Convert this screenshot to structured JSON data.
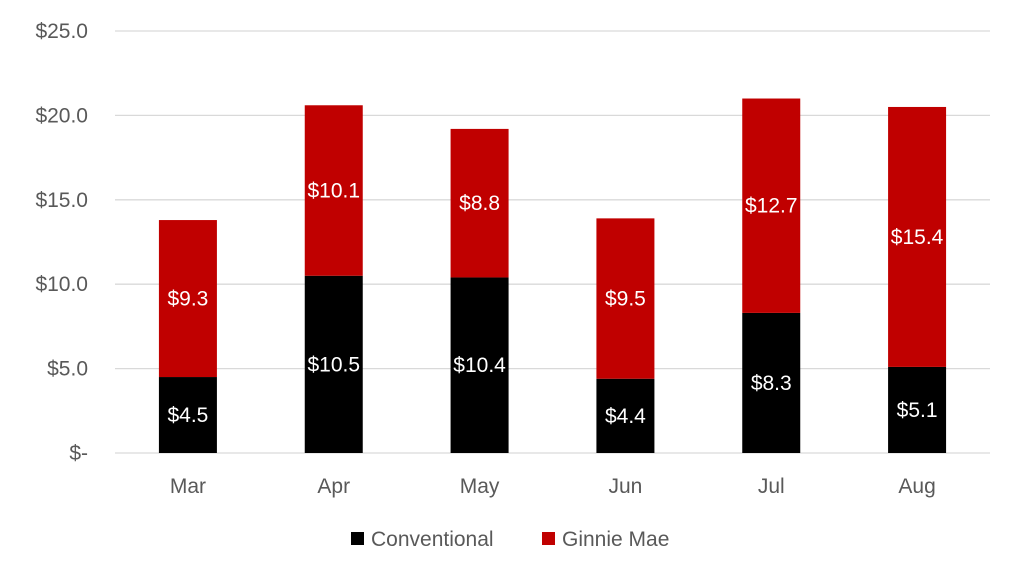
{
  "chart_data": {
    "type": "bar",
    "stacked": true,
    "title": "",
    "xlabel": "",
    "ylabel": "",
    "categories": [
      "Mar",
      "Apr",
      "May",
      "Jun",
      "Jul",
      "Aug"
    ],
    "series": [
      {
        "name": "Conventional",
        "color": "#000000",
        "values": [
          4.5,
          10.5,
          10.4,
          4.4,
          8.3,
          5.1
        ],
        "labels": [
          "$4.5",
          "$10.5",
          "$10.4",
          "$4.4",
          "$8.3",
          "$5.1"
        ]
      },
      {
        "name": "Ginnie Mae",
        "color": "#C00000",
        "values": [
          9.3,
          10.1,
          8.8,
          9.5,
          12.7,
          15.4
        ],
        "labels": [
          "$9.3",
          "$10.1",
          "$8.8",
          "$9.5",
          "$12.7",
          "$15.4"
        ]
      }
    ],
    "ylim": [
      0,
      25
    ],
    "y_ticks": [
      0,
      5,
      10,
      15,
      20,
      25
    ],
    "y_tick_labels": [
      "$-",
      "$5.0",
      "$10.0",
      "$15.0",
      "$20.0",
      "$25.0"
    ],
    "grid": true,
    "legend": "bottom"
  }
}
